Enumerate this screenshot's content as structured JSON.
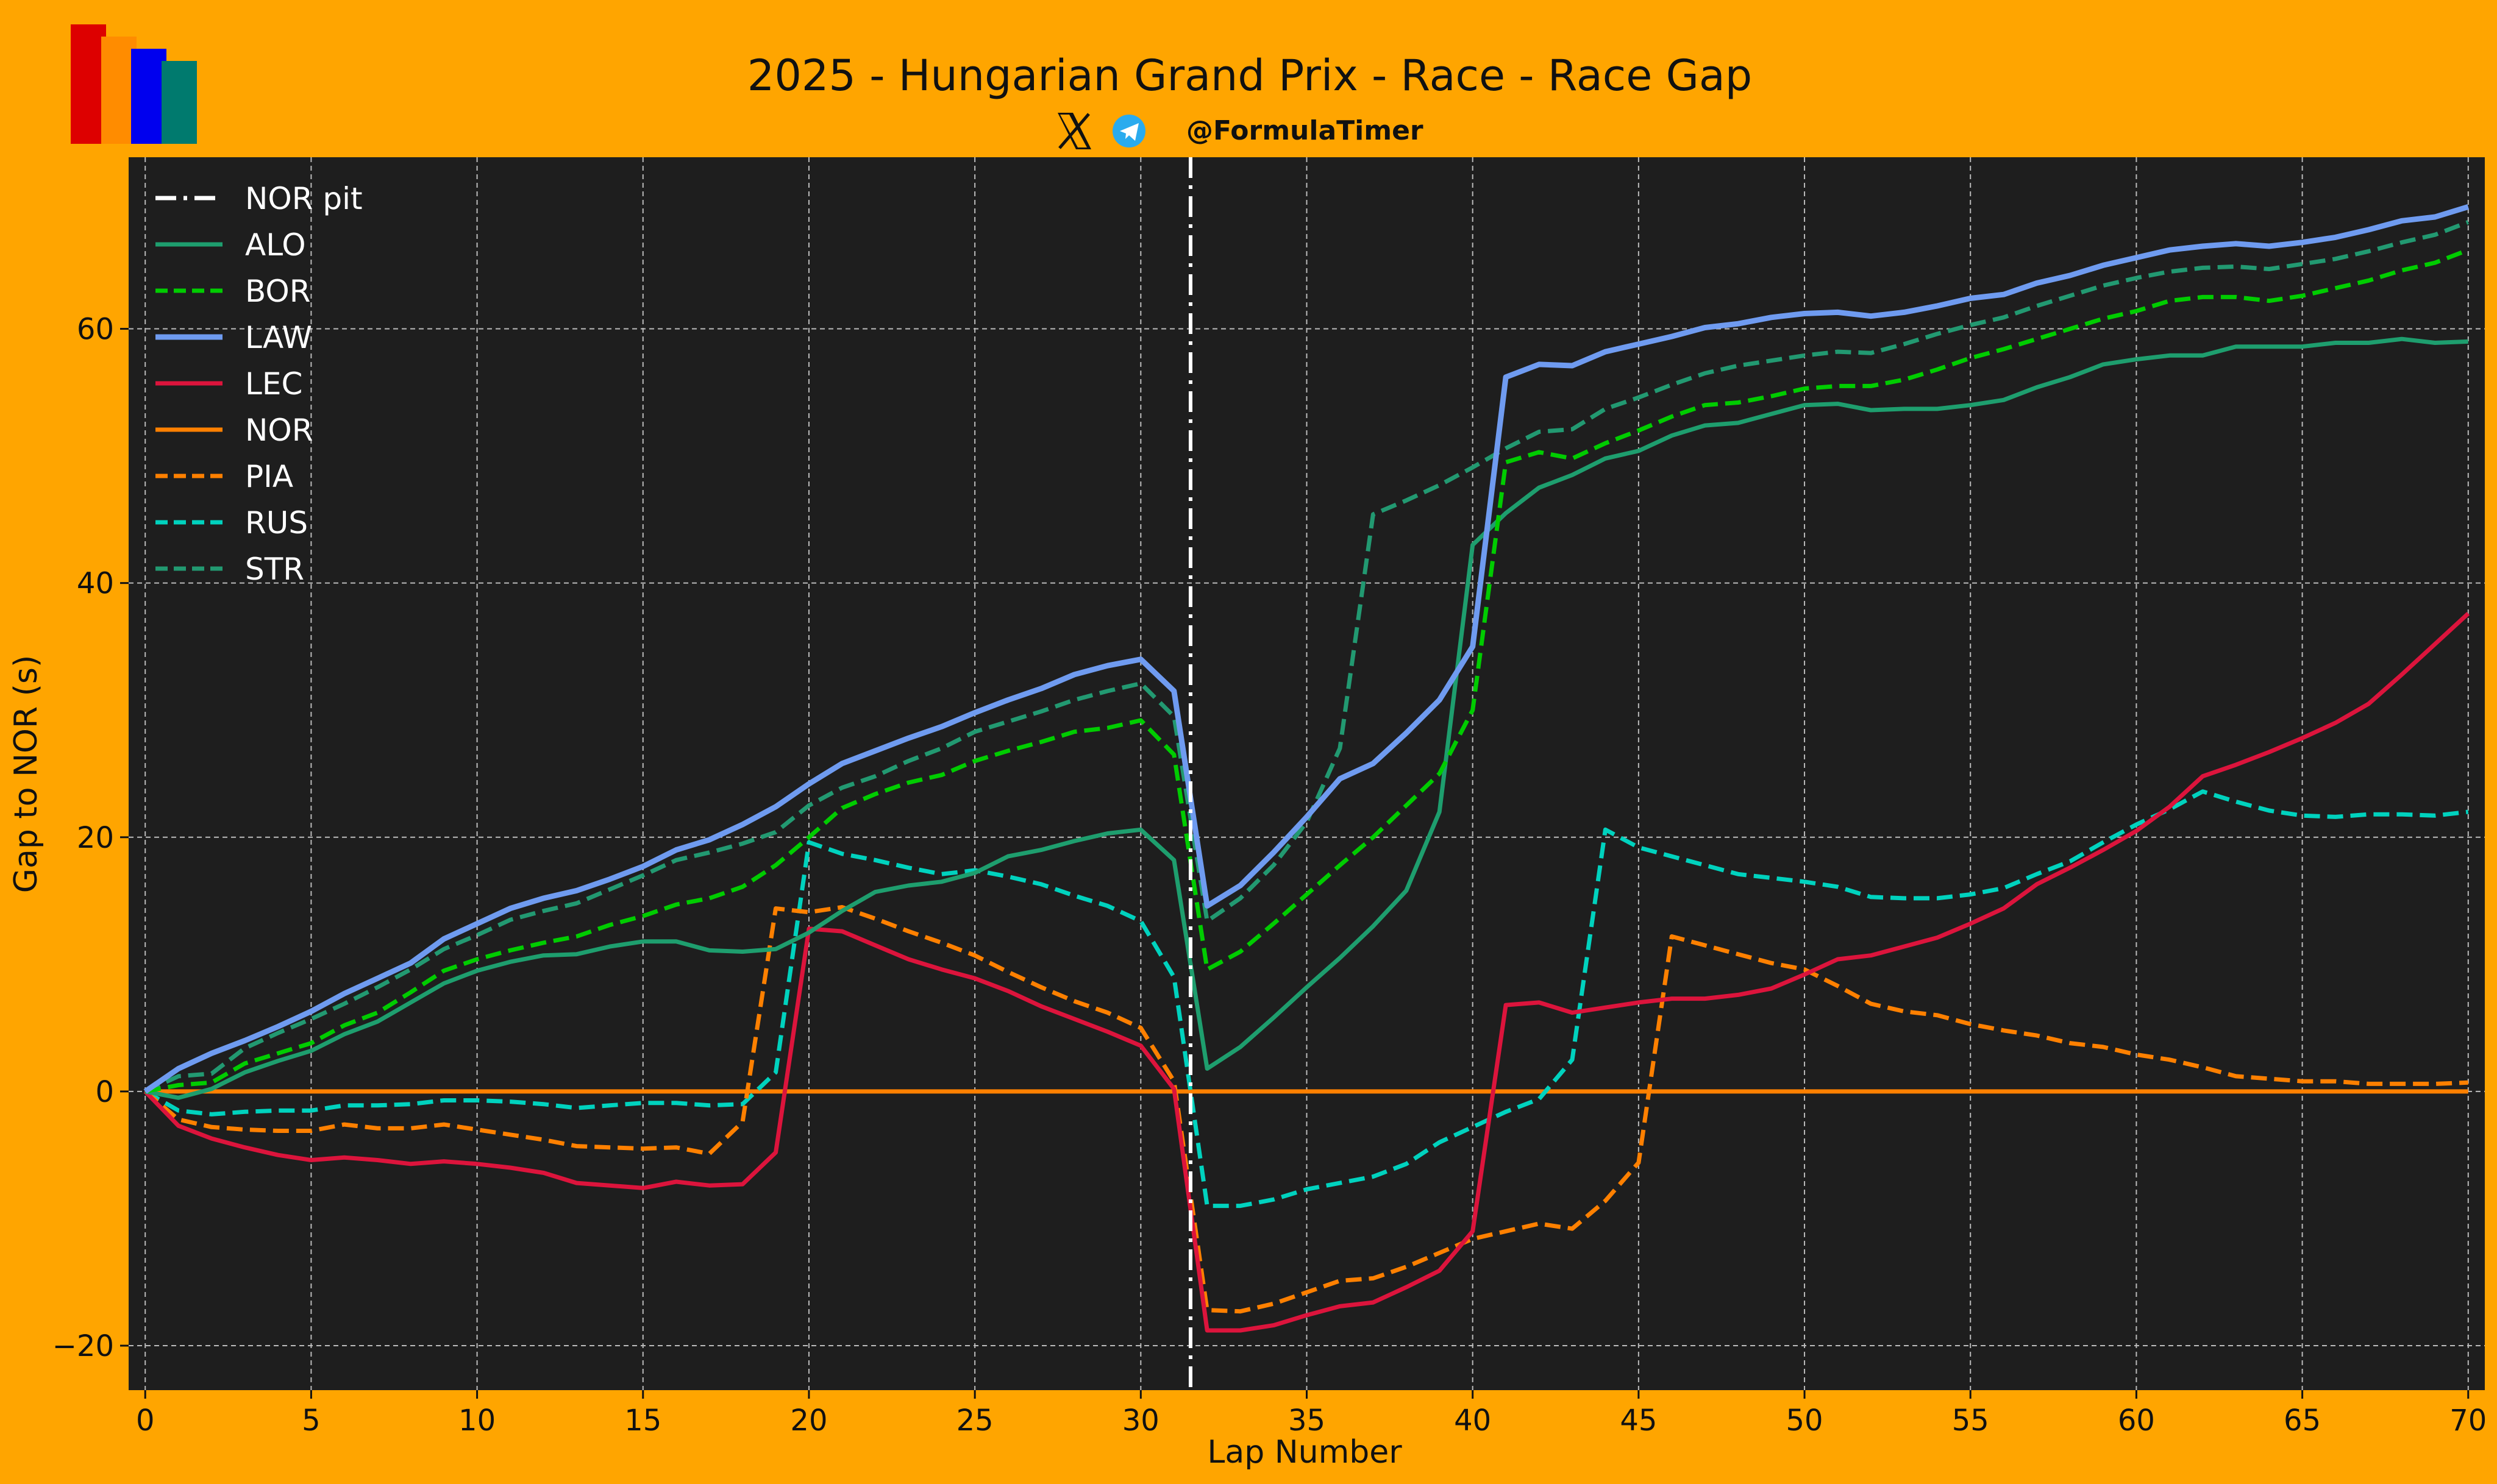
{
  "header": {
    "title": "2025 - Hungarian Grand Prix - Race - Race Gap",
    "handle": "@FormulaTimer",
    "logo_colors": [
      "#DD0000",
      "#FF8C00",
      "#0000EE",
      "#007A6E"
    ],
    "x_icon": "x-logo-icon",
    "telegram_icon": "telegram-icon"
  },
  "colors": {
    "background": "#FFA500",
    "plot_background": "#1E1E1E",
    "grid": "#BBBBBB",
    "legend_text": "#FFFFFF",
    "pit_line": "#FFFFFF",
    "telegram_blue": "#2AABEE"
  },
  "chart_data": {
    "type": "line",
    "title": "2025 - Hungarian Grand Prix - Race - Race Gap",
    "xlabel": "Lap Number",
    "ylabel": "Gap to NOR (s)",
    "xlim": [
      -0.5,
      70.5
    ],
    "ylim": [
      -23.5,
      73.5
    ],
    "xticks": [
      0,
      5,
      10,
      15,
      20,
      25,
      30,
      35,
      40,
      45,
      50,
      55,
      60,
      65,
      70
    ],
    "yticks": [
      -20,
      0,
      20,
      40,
      60
    ],
    "grid": true,
    "legend_position": "top-left",
    "pit_marker": {
      "name": "NOR pit",
      "x": 31.5,
      "color": "#FFFFFF",
      "style": "dashdot"
    },
    "x": [
      0,
      1,
      2,
      3,
      4,
      5,
      6,
      7,
      8,
      9,
      10,
      11,
      12,
      13,
      14,
      15,
      16,
      17,
      18,
      19,
      20,
      21,
      22,
      23,
      24,
      25,
      26,
      27,
      28,
      29,
      30,
      31,
      32,
      33,
      34,
      35,
      36,
      37,
      38,
      39,
      40,
      41,
      42,
      43,
      44,
      45,
      46,
      47,
      48,
      49,
      50,
      51,
      52,
      53,
      54,
      55,
      56,
      57,
      58,
      59,
      60,
      61,
      62,
      63,
      64,
      65,
      66,
      67,
      68,
      69,
      70
    ],
    "series": [
      {
        "name": "ALO",
        "color": "#1E9E6E",
        "style": "solid",
        "values": [
          0,
          -0.5,
          0.2,
          1.5,
          2.4,
          3.2,
          4.5,
          5.5,
          7,
          8.5,
          9.5,
          10.2,
          10.7,
          10.8,
          11.4,
          11.8,
          11.8,
          11.1,
          11.0,
          11.2,
          12.5,
          14.2,
          15.7,
          16.2,
          16.5,
          17.2,
          18.5,
          19,
          19.7,
          20.3,
          20.6,
          18.2,
          1.8,
          3.5,
          5.8,
          8.2,
          10.5,
          13,
          15.8,
          22,
          43,
          45.5,
          47.5,
          48.5,
          49.8,
          50.4,
          51.6,
          52.4,
          52.6,
          53.3,
          54,
          54.1,
          53.6,
          53.7,
          53.7,
          54,
          54.4,
          55.4,
          56.2,
          57.2,
          57.6,
          57.9,
          57.9,
          58.6,
          58.6,
          58.6,
          58.9,
          58.9,
          59.2,
          58.9,
          59.0
        ]
      },
      {
        "name": "BOR",
        "color": "#00CC00",
        "style": "dashed",
        "values": [
          0,
          0.5,
          0.7,
          2.2,
          3,
          3.8,
          5.2,
          6.2,
          7.8,
          9.5,
          10.4,
          11.1,
          11.7,
          12.2,
          13.1,
          13.8,
          14.7,
          15.2,
          16.1,
          17.8,
          20,
          22.3,
          23.4,
          24.3,
          24.9,
          26,
          26.8,
          27.5,
          28.3,
          28.6,
          29.2,
          26.5,
          9.6,
          11,
          13.2,
          15.5,
          17.8,
          20,
          22.5,
          25,
          30,
          49.5,
          50.3,
          49.8,
          51,
          52,
          53.1,
          54,
          54.2,
          54.7,
          55.3,
          55.5,
          55.5,
          56,
          56.8,
          57.7,
          58.4,
          59.2,
          60,
          60.8,
          61.4,
          62.2,
          62.5,
          62.5,
          62.2,
          62.6,
          63.2,
          63.8,
          64.6,
          65.2,
          66.2
        ]
      },
      {
        "name": "LAW",
        "color": "#6F9BF0",
        "style": "solid",
        "width": "thick",
        "values": [
          0,
          1.8,
          3,
          4,
          5.1,
          6.3,
          7.7,
          8.9,
          10.1,
          12,
          13.2,
          14.4,
          15.2,
          15.8,
          16.7,
          17.7,
          19,
          19.8,
          21,
          22.4,
          24.2,
          25.8,
          26.8,
          27.8,
          28.7,
          29.8,
          30.8,
          31.7,
          32.8,
          33.5,
          34,
          31.5,
          14.6,
          16.2,
          18.8,
          21.6,
          24.6,
          25.8,
          28.2,
          30.8,
          35,
          56.2,
          57.2,
          57.1,
          58.2,
          58.8,
          59.4,
          60.1,
          60.4,
          60.9,
          61.2,
          61.3,
          61,
          61.3,
          61.8,
          62.4,
          62.7,
          63.6,
          64.2,
          65,
          65.6,
          66.2,
          66.5,
          66.7,
          66.5,
          66.8,
          67.2,
          67.8,
          68.5,
          68.8,
          69.6
        ]
      },
      {
        "name": "LEC",
        "color": "#DC143C",
        "style": "solid",
        "values": [
          0,
          -2.7,
          -3.7,
          -4.4,
          -5,
          -5.4,
          -5.2,
          -5.4,
          -5.7,
          -5.5,
          -5.7,
          -6,
          -6.4,
          -7.2,
          -7.4,
          -7.6,
          -7.1,
          -7.4,
          -7.3,
          -4.8,
          12.8,
          12.6,
          11.5,
          10.4,
          9.6,
          8.9,
          7.9,
          6.7,
          5.7,
          4.7,
          3.6,
          0.2,
          -18.8,
          -18.8,
          -18.4,
          -17.6,
          -16.9,
          -16.6,
          -15.4,
          -14.1,
          -11,
          6.8,
          7,
          6.2,
          6.6,
          7,
          7.3,
          7.3,
          7.6,
          8.1,
          9.2,
          10.4,
          10.7,
          11.4,
          12.1,
          13.2,
          14.4,
          16.3,
          17.6,
          19,
          20.5,
          22.4,
          24.8,
          25.7,
          26.7,
          27.8,
          29,
          30.5,
          32.8,
          35.2,
          37.6
        ]
      },
      {
        "name": "NOR",
        "color": "#FF8000",
        "style": "solid",
        "values": [
          0,
          0,
          0,
          0,
          0,
          0,
          0,
          0,
          0,
          0,
          0,
          0,
          0,
          0,
          0,
          0,
          0,
          0,
          0,
          0,
          0,
          0,
          0,
          0,
          0,
          0,
          0,
          0,
          0,
          0,
          0,
          0,
          0,
          0,
          0,
          0,
          0,
          0,
          0,
          0,
          0,
          0,
          0,
          0,
          0,
          0,
          0,
          0,
          0,
          0,
          0,
          0,
          0,
          0,
          0,
          0,
          0,
          0,
          0,
          0,
          0,
          0,
          0,
          0,
          0,
          0,
          0,
          0,
          0,
          0,
          0
        ]
      },
      {
        "name": "PIA",
        "color": "#FF8000",
        "style": "dashed",
        "values": [
          0,
          -2.2,
          -2.8,
          -3,
          -3.1,
          -3.1,
          -2.6,
          -2.9,
          -2.9,
          -2.6,
          -3,
          -3.4,
          -3.8,
          -4.3,
          -4.4,
          -4.5,
          -4.4,
          -4.9,
          -2.4,
          14.4,
          14.1,
          14.5,
          13.6,
          12.6,
          11.7,
          10.7,
          9.4,
          8.2,
          7.1,
          6.2,
          5,
          0.8,
          -17.2,
          -17.3,
          -16.7,
          -15.8,
          -14.9,
          -14.7,
          -13.8,
          -12.7,
          -11.6,
          -11,
          -10.4,
          -10.8,
          -8.6,
          -5.6,
          12.2,
          11.5,
          10.8,
          10.1,
          9.6,
          8.3,
          6.9,
          6.3,
          6,
          5.3,
          4.8,
          4.4,
          3.8,
          3.5,
          2.9,
          2.5,
          1.9,
          1.2,
          1,
          0.8,
          0.8,
          0.6,
          0.6,
          0.6,
          0.7
        ]
      },
      {
        "name": "RUS",
        "color": "#00D2BE",
        "style": "dashed",
        "values": [
          0,
          -1.5,
          -1.8,
          -1.6,
          -1.5,
          -1.5,
          -1.1,
          -1.1,
          -1,
          -0.7,
          -0.7,
          -0.8,
          -1,
          -1.3,
          -1.1,
          -0.9,
          -0.9,
          -1.1,
          -1,
          1.5,
          19.6,
          18.7,
          18.2,
          17.6,
          17.1,
          17.4,
          16.9,
          16.3,
          15.4,
          14.6,
          13.4,
          9,
          -9,
          -9,
          -8.5,
          -7.7,
          -7.2,
          -6.7,
          -5.7,
          -4,
          -2.8,
          -1.6,
          -0.6,
          2.5,
          20.6,
          19.2,
          18.5,
          17.8,
          17.1,
          16.8,
          16.5,
          16.1,
          15.3,
          15.2,
          15.2,
          15.5,
          16,
          17.1,
          18.1,
          19.6,
          21,
          22.2,
          23.6,
          22.8,
          22.1,
          21.7,
          21.6,
          21.8,
          21.8,
          21.7,
          22
        ]
      },
      {
        "name": "STR",
        "color": "#229971",
        "style": "dashed",
        "values": [
          0,
          1.2,
          1.4,
          3.4,
          4.6,
          5.7,
          6.9,
          8.2,
          9.6,
          11.2,
          12.3,
          13.5,
          14.2,
          14.8,
          15.9,
          17,
          18.2,
          18.8,
          19.5,
          20.4,
          22.5,
          23.9,
          24.8,
          26,
          27,
          28.3,
          29.1,
          29.9,
          30.8,
          31.5,
          32.1,
          29.5,
          13.4,
          15.2,
          17.8,
          21.2,
          27,
          45.4,
          46.5,
          47.7,
          49.1,
          50.6,
          51.9,
          52.1,
          53.7,
          54.6,
          55.6,
          56.5,
          57.1,
          57.5,
          57.9,
          58.2,
          58.1,
          58.8,
          59.6,
          60.3,
          60.9,
          61.8,
          62.6,
          63.4,
          64,
          64.5,
          64.8,
          64.9,
          64.7,
          65.1,
          65.5,
          66.1,
          66.8,
          67.4,
          68.4
        ]
      }
    ]
  }
}
